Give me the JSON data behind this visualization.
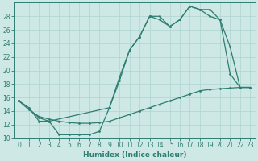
{
  "xlabel": "Humidex (Indice chaleur)",
  "background_color": "#cde8e5",
  "line_color": "#2e7d72",
  "grid_color": "#afd4d0",
  "xlim": [
    -0.5,
    23.5
  ],
  "ylim": [
    10,
    30
  ],
  "yticks": [
    10,
    12,
    14,
    16,
    18,
    20,
    22,
    24,
    26,
    28
  ],
  "xticks": [
    0,
    1,
    2,
    3,
    4,
    5,
    6,
    7,
    8,
    9,
    10,
    11,
    12,
    13,
    14,
    15,
    16,
    17,
    18,
    19,
    20,
    21,
    22,
    23
  ],
  "line1_x": [
    0,
    1,
    2,
    3,
    4,
    5,
    6,
    7,
    8,
    9,
    10,
    11,
    12,
    13,
    14,
    15,
    16,
    17,
    18,
    19,
    20,
    21,
    22,
    23
  ],
  "line1_y": [
    15.5,
    14.5,
    12.5,
    12.5,
    10.5,
    10.5,
    10.5,
    10.5,
    11.0,
    14.5,
    19.0,
    23.0,
    25.0,
    28.0,
    28.0,
    26.5,
    27.5,
    29.5,
    29.0,
    29.0,
    27.5,
    19.5,
    17.5,
    17.5
  ],
  "line2_x": [
    0,
    2,
    3,
    9,
    10,
    11,
    12,
    13,
    14,
    15,
    16,
    17,
    18,
    19,
    20,
    21,
    22,
    23
  ],
  "line2_y": [
    15.5,
    13.0,
    12.5,
    14.5,
    18.5,
    23.0,
    25.0,
    28.0,
    27.5,
    26.5,
    27.5,
    29.5,
    29.0,
    28.0,
    27.5,
    23.5,
    17.5,
    17.5
  ],
  "line3_x": [
    0,
    1,
    2,
    3,
    4,
    5,
    6,
    7,
    8,
    9,
    10,
    11,
    12,
    13,
    14,
    15,
    16,
    17,
    18,
    19,
    20,
    21,
    22,
    23
  ],
  "line3_y": [
    15.5,
    14.2,
    13.2,
    12.8,
    12.5,
    12.3,
    12.2,
    12.2,
    12.3,
    12.5,
    13.0,
    13.5,
    14.0,
    14.5,
    15.0,
    15.5,
    16.0,
    16.5,
    17.0,
    17.2,
    17.3,
    17.4,
    17.5,
    17.5
  ],
  "xlabel_fontsize": 6.5,
  "tick_fontsize": 5.5,
  "lw": 0.9,
  "ms": 2.0
}
